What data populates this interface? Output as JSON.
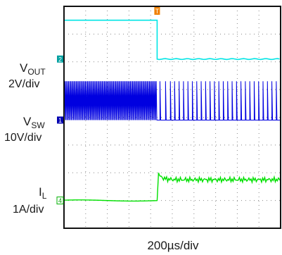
{
  "chart_data": {
    "type": "line",
    "title": "",
    "xlabel": "200µs/div",
    "ylabel": "",
    "x_divisions": 10,
    "y_divisions": 8,
    "trigger_marker": "T",
    "trigger_time_div": 4.3,
    "grid": true,
    "channels": [
      {
        "marker": "2",
        "label_main": "V",
        "label_sub": "OUT",
        "scale": "2V/div",
        "color": "#00e5e5",
        "ground_div": 6.1,
        "before_level_div": 7.5,
        "after_level_div": 6.1
      },
      {
        "marker": "1",
        "label_main": "V",
        "label_sub": "SW",
        "scale": "10V/div",
        "color": "#0000e0",
        "ground_div": 3.9,
        "switch_high_div": 5.3,
        "switch_low_div": 3.9
      },
      {
        "marker": "4",
        "label_main": "I",
        "label_sub": "L",
        "scale": "1A/div",
        "color": "#00e000",
        "ground_div": 1.0,
        "before_level_div": 1.0,
        "peak_div": 2.0,
        "after_level_div": 1.75
      }
    ]
  }
}
